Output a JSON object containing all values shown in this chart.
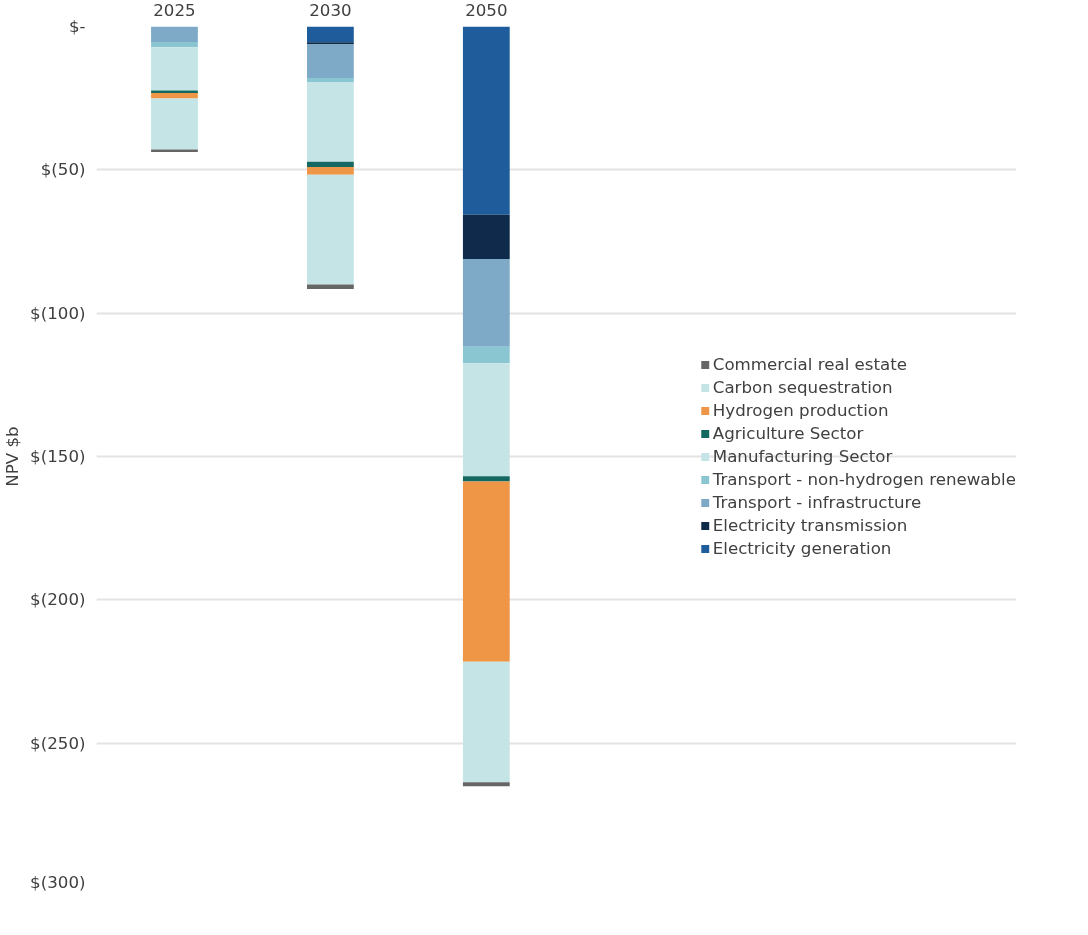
{
  "chart_data": {
    "type": "bar",
    "stacked": true,
    "ylabel": "NPV $b",
    "categories": [
      "2025",
      "2030",
      "2050"
    ],
    "series": [
      {
        "name": "Electricity generation",
        "color": "#1f5c9c",
        "values": [
          0,
          -5.5,
          -65.7
        ]
      },
      {
        "name": "Electricity transmission",
        "color": "#0f2a4a",
        "values": [
          0,
          -0.6,
          -15.4
        ]
      },
      {
        "name": "Transport - infrastructure",
        "color": "#7eaac8",
        "values": [
          -5.4,
          -11.9,
          -30.6
        ]
      },
      {
        "name": "Transport - non-hydrogen renewable",
        "color": "#89c6d2",
        "values": [
          -1.8,
          -1.4,
          -5.8
        ]
      },
      {
        "name": "Manufacturing Sector",
        "color": "#c5e4e6",
        "values": [
          -15.1,
          -27.8,
          -39.4
        ]
      },
      {
        "name": "Agriculture Sector",
        "color": "#136962",
        "values": [
          -0.9,
          -1.8,
          -1.8
        ]
      },
      {
        "name": "Hydrogen production",
        "color": "#ef9546",
        "values": [
          -1.9,
          -2.7,
          -62.9
        ]
      },
      {
        "name": "Carbon sequestration",
        "color": "#c5e4e6",
        "values": [
          -17.8,
          -38.3,
          -42.0
        ]
      },
      {
        "name": "Commercial real estate",
        "color": "#666666",
        "values": [
          -0.9,
          -1.6,
          -1.4
        ]
      }
    ],
    "ylim": [
      -300,
      0
    ],
    "yticks": [
      {
        "value": 0,
        "label": "$-"
      },
      {
        "value": -50,
        "label": "$(50)"
      },
      {
        "value": -100,
        "label": "$(100)"
      },
      {
        "value": -150,
        "label": "$(150)"
      },
      {
        "value": -200,
        "label": "$(200)"
      },
      {
        "value": -250,
        "label": "$(250)"
      },
      {
        "value": -300,
        "label": "$(300)"
      }
    ],
    "grid": "y",
    "legend": "right"
  }
}
